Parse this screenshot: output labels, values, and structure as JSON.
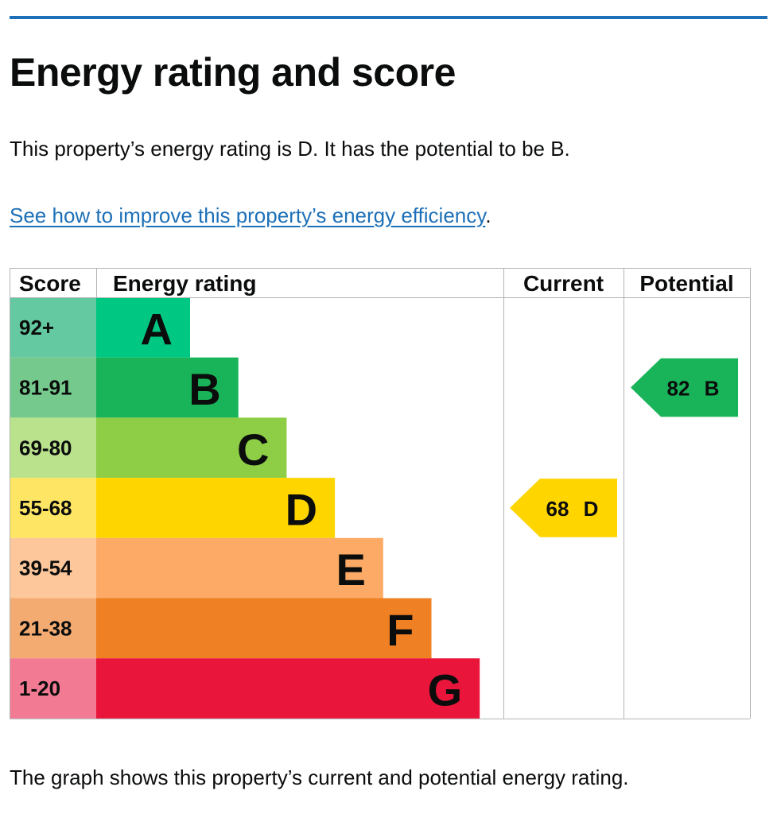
{
  "header": {
    "title": "Energy rating and score"
  },
  "summary": "This property’s energy rating is D. It has the potential to be B.",
  "link": {
    "text": "See how to improve this property’s energy efficiency",
    "suffix": "."
  },
  "table": {
    "headers": [
      "Score",
      "Energy rating",
      "Current",
      "Potential"
    ],
    "rows": [
      {
        "score": "92+",
        "rating": "A"
      },
      {
        "score": "81-91",
        "rating": "B"
      },
      {
        "score": "69-80",
        "rating": "C"
      },
      {
        "score": "55-68",
        "rating": "D"
      },
      {
        "score": "39-54",
        "rating": "E"
      },
      {
        "score": "21-38",
        "rating": "F"
      },
      {
        "score": "1-20",
        "rating": "G"
      }
    ],
    "current": {
      "score": 68,
      "rating": "D"
    },
    "potential": {
      "score": 82,
      "rating": "B"
    }
  },
  "footer": "The graph shows this property’s current and potential energy rating."
}
